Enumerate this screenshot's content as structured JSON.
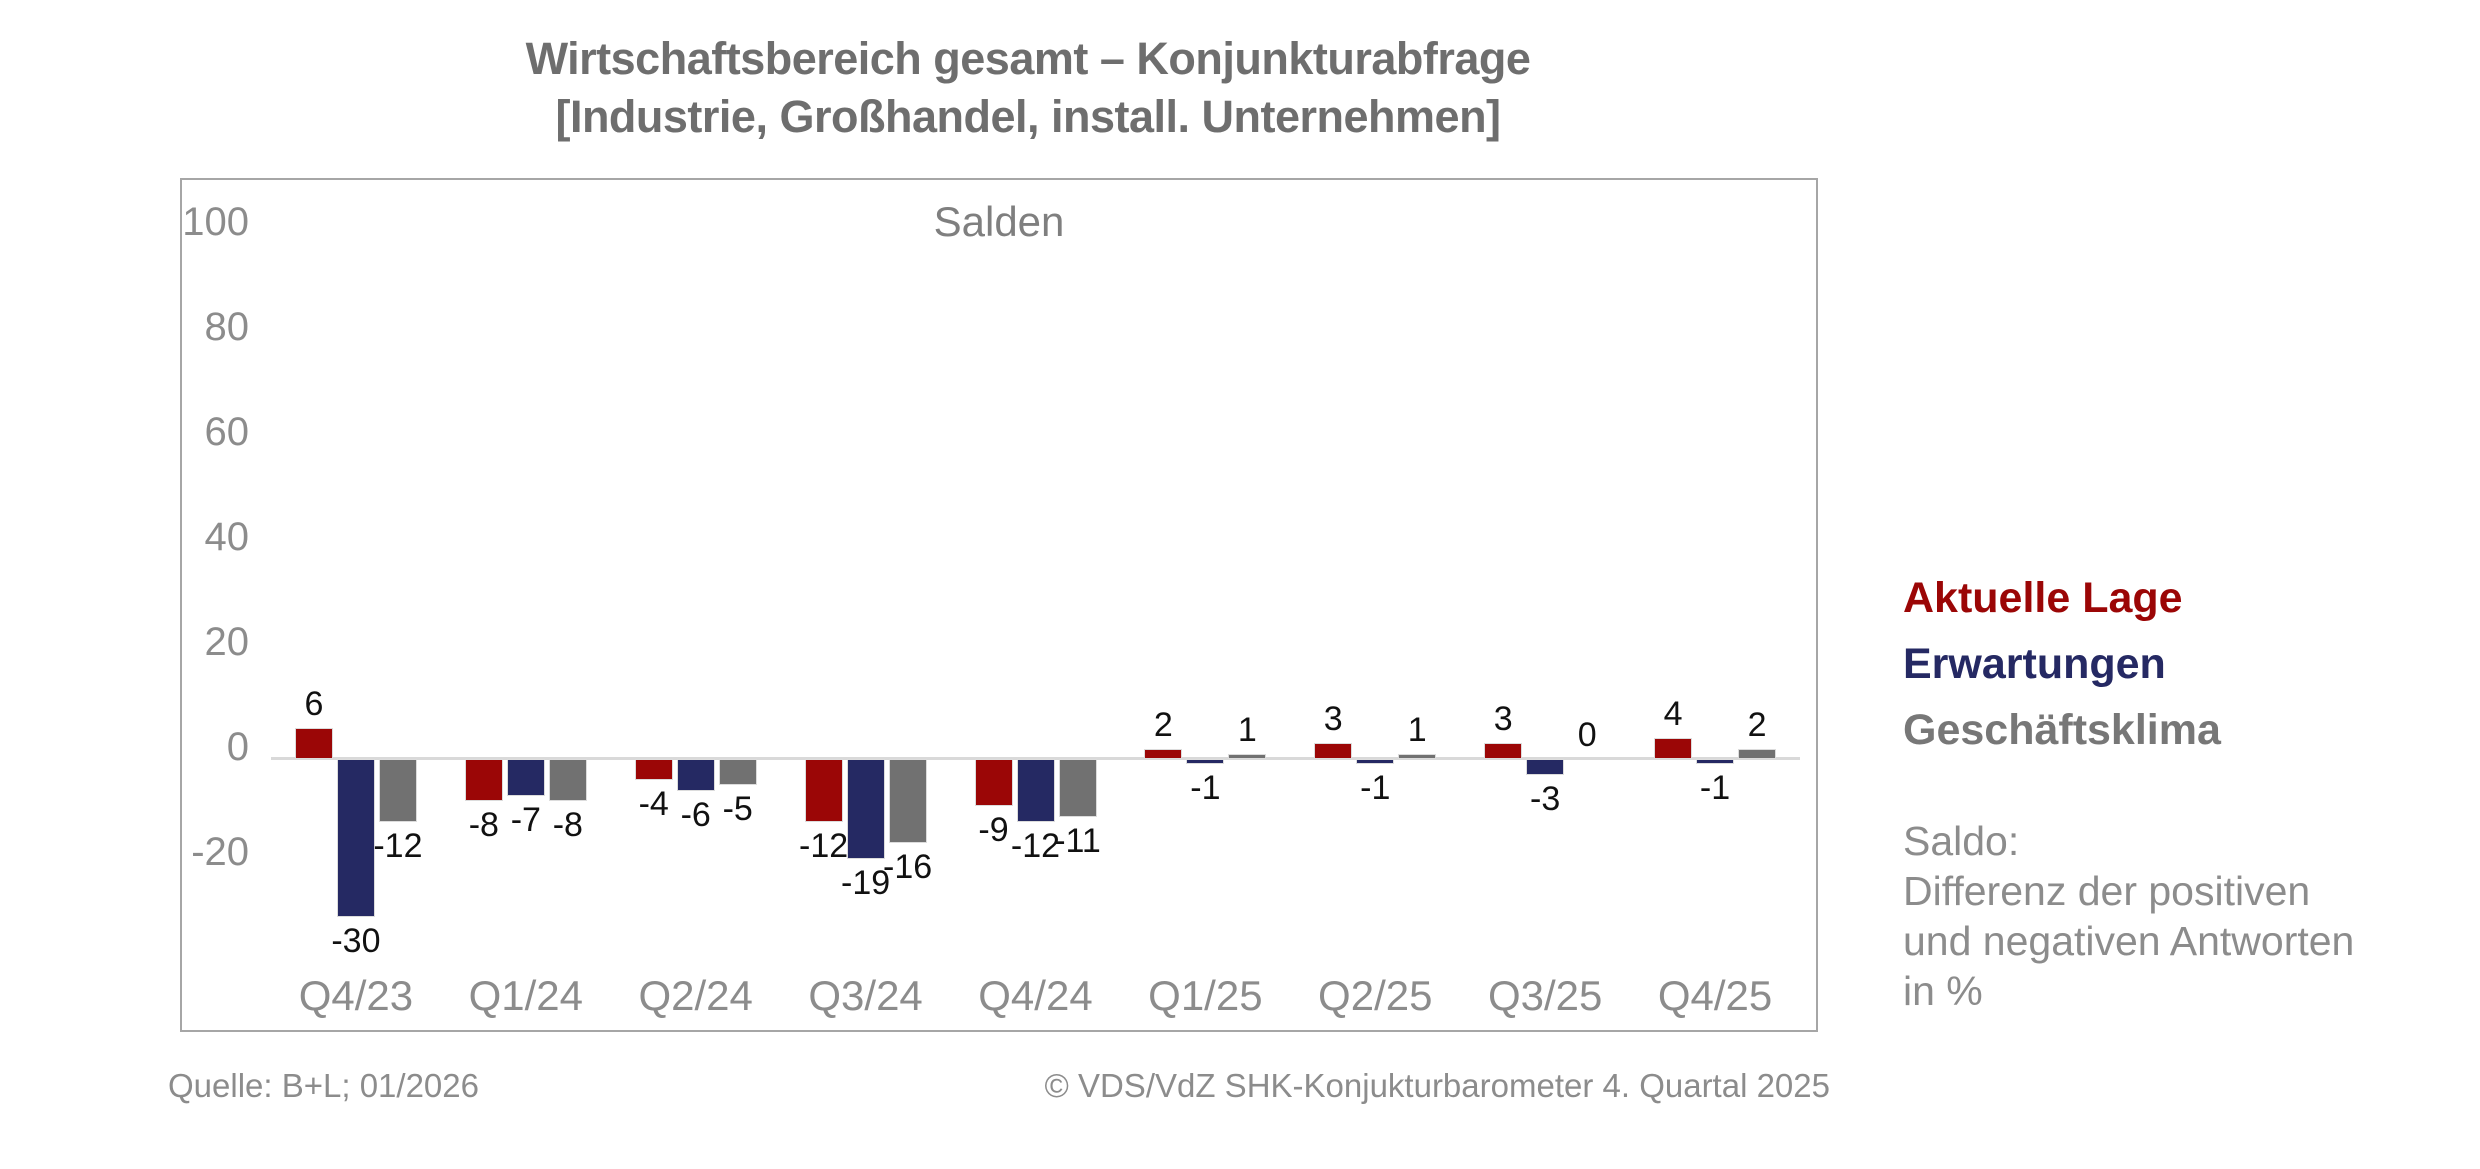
{
  "title": {
    "line1": "Wirtschaftsbereich gesamt – Konjunkturabfrage",
    "line2": "[Industrie, Großhandel, install. Unternehmen]"
  },
  "chart_data": {
    "type": "bar",
    "inner_title": "Salden",
    "categories": [
      "Q4/23",
      "Q1/24",
      "Q2/24",
      "Q3/24",
      "Q4/24",
      "Q1/25",
      "Q2/25",
      "Q3/25",
      "Q4/25"
    ],
    "series": [
      {
        "name": "Aktuelle Lage",
        "color": "#9b0606",
        "values": [
          6,
          -8,
          -4,
          -12,
          -9,
          2,
          3,
          3,
          4
        ]
      },
      {
        "name": "Erwartungen",
        "color": "#252963",
        "values": [
          -30,
          -7,
          -6,
          -19,
          -12,
          -1,
          -1,
          -3,
          -1
        ]
      },
      {
        "name": "Geschäftsklima",
        "color": "#717171",
        "values": [
          -12,
          -8,
          -5,
          -16,
          -11,
          1,
          1,
          0,
          2
        ]
      }
    ],
    "y_ticks": [
      100,
      80,
      60,
      40,
      20,
      0,
      -20
    ],
    "ylim": [
      -40,
      100
    ],
    "grid": "zero-line-only",
    "legend_position": "right",
    "value_labels": "outside-end",
    "axis_label_color": "#8c8c8c",
    "zero_line_color": "#d9d9d9"
  },
  "legend": {
    "note_lines": [
      "Saldo:",
      "Differenz der positiven",
      "und negativen Antworten",
      "in %"
    ]
  },
  "footer": {
    "source": "Quelle: B+L; 01/2026",
    "copyright": "© VDS/VdZ SHK-Konjukturbarometer 4. Quartal 2025"
  }
}
